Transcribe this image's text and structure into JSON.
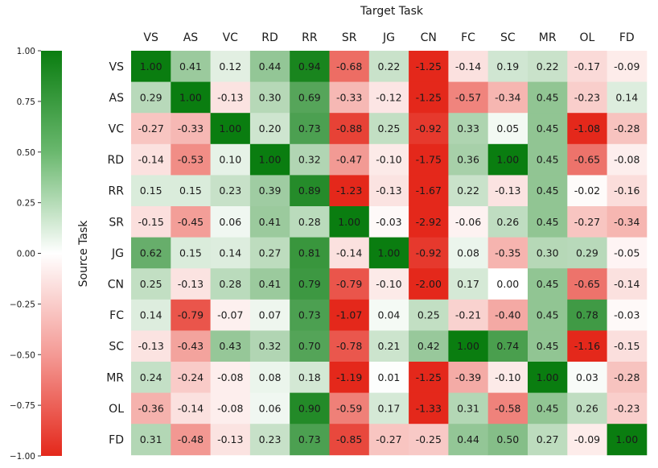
{
  "chart_data": {
    "type": "heatmap",
    "title": "",
    "xlabel": "Target Task",
    "ylabel": "Source Task",
    "x_categories": [
      "VS",
      "AS",
      "VC",
      "RD",
      "RR",
      "SR",
      "JG",
      "CN",
      "FC",
      "SC",
      "MR",
      "OL",
      "FD"
    ],
    "y_categories": [
      "VS",
      "AS",
      "VC",
      "RD",
      "RR",
      "SR",
      "JG",
      "CN",
      "FC",
      "SC",
      "MR",
      "OL",
      "FD"
    ],
    "values": [
      [
        1.0,
        0.41,
        0.12,
        0.44,
        0.94,
        -0.68,
        0.22,
        -1.25,
        -0.14,
        0.19,
        0.22,
        -0.17,
        -0.09
      ],
      [
        0.29,
        1.0,
        -0.13,
        0.3,
        0.69,
        -0.33,
        -0.12,
        -1.25,
        -0.57,
        -0.34,
        0.45,
        -0.23,
        0.14
      ],
      [
        -0.27,
        -0.33,
        1.0,
        0.2,
        0.73,
        -0.88,
        0.25,
        -0.92,
        0.33,
        0.05,
        0.45,
        -1.08,
        -0.28
      ],
      [
        -0.14,
        -0.53,
        0.1,
        1.0,
        0.32,
        -0.47,
        -0.1,
        -1.75,
        0.36,
        1.0,
        0.45,
        -0.65,
        -0.08
      ],
      [
        0.15,
        0.15,
        0.23,
        0.39,
        0.89,
        -1.23,
        -0.13,
        -1.67,
        0.22,
        -0.13,
        0.45,
        -0.02,
        -0.16
      ],
      [
        -0.15,
        -0.45,
        0.06,
        0.41,
        0.28,
        1.0,
        -0.03,
        -2.92,
        -0.06,
        0.26,
        0.45,
        -0.27,
        -0.34
      ],
      [
        0.62,
        0.15,
        0.14,
        0.27,
        0.81,
        -0.14,
        1.0,
        -0.92,
        0.08,
        -0.35,
        0.3,
        0.29,
        -0.05
      ],
      [
        0.25,
        -0.13,
        0.28,
        0.41,
        0.79,
        -0.79,
        -0.1,
        -2.0,
        0.17,
        -0.0,
        0.45,
        -0.65,
        -0.14
      ],
      [
        0.14,
        -0.79,
        -0.07,
        0.07,
        0.73,
        -1.07,
        0.04,
        0.25,
        -0.21,
        -0.4,
        0.45,
        0.78,
        -0.03
      ],
      [
        -0.13,
        -0.43,
        0.43,
        0.32,
        0.7,
        -0.78,
        0.21,
        0.42,
        1.0,
        0.74,
        0.45,
        -1.16,
        -0.15
      ],
      [
        0.24,
        -0.24,
        -0.08,
        0.08,
        0.18,
        -1.19,
        0.01,
        -1.25,
        -0.39,
        -0.1,
        1.0,
        0.03,
        -0.28
      ],
      [
        -0.36,
        -0.14,
        -0.08,
        0.06,
        0.9,
        -0.59,
        0.17,
        -1.33,
        0.31,
        -0.58,
        0.45,
        0.26,
        -0.23
      ],
      [
        0.31,
        -0.48,
        -0.13,
        0.23,
        0.73,
        -0.85,
        -0.27,
        -0.25,
        0.44,
        0.5,
        0.27,
        -0.09,
        1.0
      ]
    ],
    "color_range": [
      -1.0,
      1.0
    ],
    "colormap": {
      "low": "#e4281b",
      "mid": "#ffffff",
      "high": "#0a7d10"
    },
    "colorbar_ticks": [
      "1.00",
      "0.75",
      "0.50",
      "0.25",
      "0.00",
      "−0.25",
      "−0.50",
      "−0.75",
      "−1.00"
    ],
    "colorbar_tick_values": [
      1.0,
      0.75,
      0.5,
      0.25,
      0.0,
      -0.25,
      -0.5,
      -0.75,
      -1.0
    ],
    "grid": false,
    "legend": "colorbar-left"
  }
}
